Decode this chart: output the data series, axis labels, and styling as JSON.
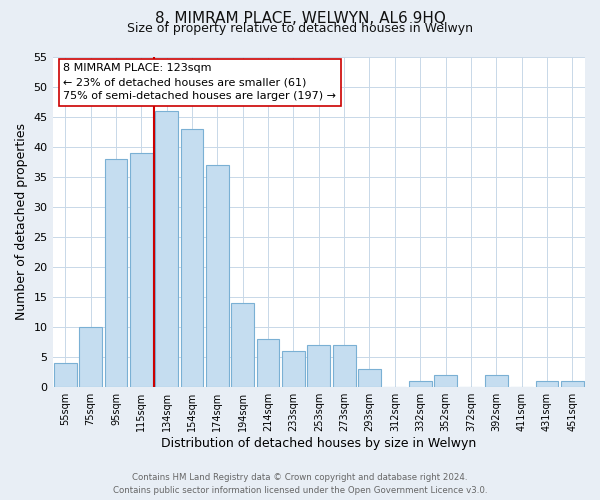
{
  "title": "8, MIMRAM PLACE, WELWYN, AL6 9HQ",
  "subtitle": "Size of property relative to detached houses in Welwyn",
  "xlabel": "Distribution of detached houses by size in Welwyn",
  "ylabel": "Number of detached properties",
  "bar_labels": [
    "55sqm",
    "75sqm",
    "95sqm",
    "115sqm",
    "134sqm",
    "154sqm",
    "174sqm",
    "194sqm",
    "214sqm",
    "233sqm",
    "253sqm",
    "273sqm",
    "293sqm",
    "312sqm",
    "332sqm",
    "352sqm",
    "372sqm",
    "392sqm",
    "411sqm",
    "431sqm",
    "451sqm"
  ],
  "bar_values": [
    4,
    10,
    38,
    39,
    46,
    43,
    37,
    14,
    8,
    6,
    7,
    7,
    3,
    0,
    1,
    2,
    0,
    2,
    0,
    1,
    1
  ],
  "bar_color": "#c5ddf0",
  "bar_edge_color": "#7ab0d4",
  "property_line_index": 4,
  "property_line_color": "#cc0000",
  "annotation_line0": "8 MIMRAM PLACE: 123sqm",
  "annotation_line1": "← 23% of detached houses are smaller (61)",
  "annotation_line2": "75% of semi-detached houses are larger (197) →",
  "annotation_box_facecolor": "#ffffff",
  "annotation_box_edgecolor": "#cc0000",
  "ylim": [
    0,
    55
  ],
  "yticks": [
    0,
    5,
    10,
    15,
    20,
    25,
    30,
    35,
    40,
    45,
    50,
    55
  ],
  "footer_line1": "Contains HM Land Registry data © Crown copyright and database right 2024.",
  "footer_line2": "Contains public sector information licensed under the Open Government Licence v3.0.",
  "bg_color": "#e8eef5",
  "plot_bg_color": "#ffffff",
  "grid_color": "#c8d8e8"
}
